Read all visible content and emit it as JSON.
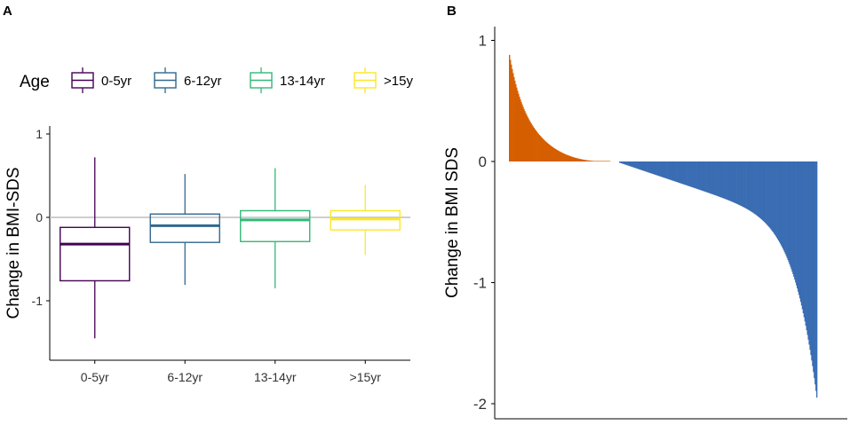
{
  "colors": {
    "age_0_5": "#440154",
    "age_6_12": "#31688E",
    "age_13_14": "#35B779",
    "age_15_plus": "#FDE725",
    "positive_bar": "#D55E00",
    "negative_bar": "#3A6DB3",
    "zero_line": "#bdbdbd"
  },
  "chart_data": [
    {
      "panel": "A",
      "type": "box",
      "legend": {
        "title": "Age",
        "entries": [
          "0-5yr",
          "6-12yr",
          "13-14yr",
          ">15y"
        ]
      },
      "categories": [
        "0-5yr",
        "6-12yr",
        "13-14yr",
        ">15yr"
      ],
      "boxes": [
        {
          "name": "0-5yr",
          "min": -1.45,
          "q1": -0.76,
          "median": -0.32,
          "q3": -0.12,
          "max": 0.72
        },
        {
          "name": "6-12yr",
          "min": -0.81,
          "q1": -0.3,
          "median": -0.1,
          "q3": 0.04,
          "max": 0.52
        },
        {
          "name": "13-14yr",
          "min": -0.85,
          "q1": -0.29,
          "median": -0.03,
          "q3": 0.08,
          "max": 0.59
        },
        {
          "name": ">15yr",
          "min": -0.45,
          "q1": -0.15,
          "median": -0.02,
          "q3": 0.08,
          "max": 0.39
        }
      ],
      "ylabel": "Change in BMI-SDS",
      "xlabel": "",
      "ylim": [
        -1.6,
        1.08
      ],
      "yticks": [
        -1,
        0,
        1
      ],
      "yticks_labels": [
        "-1",
        "0",
        "1"
      ],
      "reference_line": 0,
      "grid": false
    },
    {
      "panel": "B",
      "type": "bar",
      "description_type": "waterfall",
      "ylabel": "Change in BMI SDS",
      "xlabel": "",
      "ylim": [
        -2.1,
        1.05
      ],
      "yticks": [
        -2,
        -1,
        0,
        1
      ],
      "yticks_labels": [
        "-2",
        "-1",
        "0",
        "1"
      ],
      "n_bars": 345,
      "positive_count": 112,
      "positive_max": 0.88,
      "positive_decay": 0.12,
      "negative_count": 233,
      "negative_min": -1.95,
      "grid": false
    }
  ]
}
